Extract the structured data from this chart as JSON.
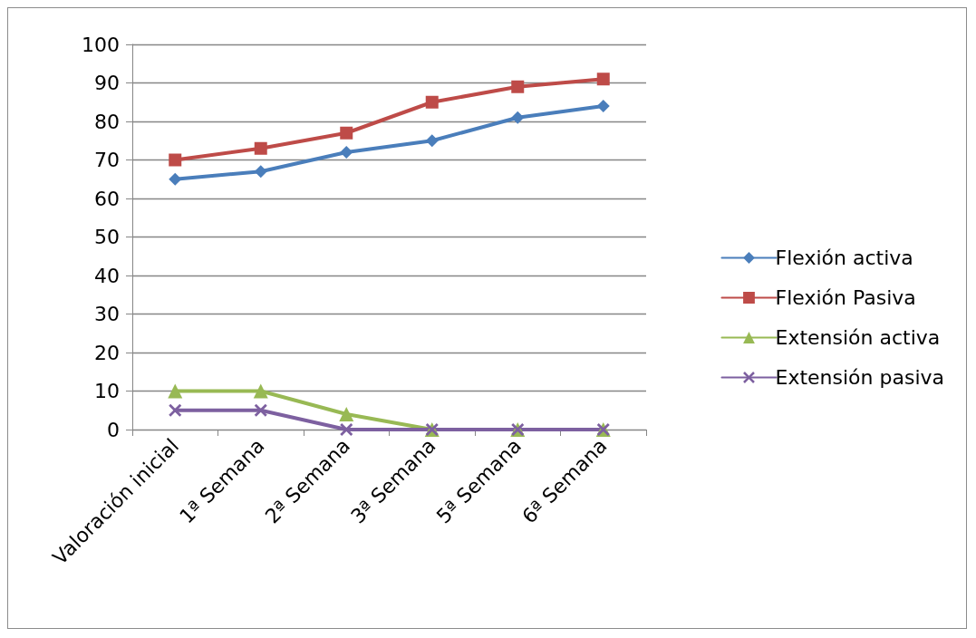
{
  "chart_data": {
    "type": "line",
    "categories": [
      "Valoración inicial",
      "1ª Semana",
      "2ª Semana",
      "3ª Semana",
      "5ª Semana",
      "6ª Semana"
    ],
    "series": [
      {
        "name": "Flexión activa",
        "color": "#4a7ebb",
        "marker": "diamond",
        "values": [
          65,
          67,
          72,
          75,
          81,
          84
        ]
      },
      {
        "name": "Flexión Pasiva",
        "color": "#be4b48",
        "marker": "square",
        "values": [
          70,
          73,
          77,
          85,
          89,
          91
        ]
      },
      {
        "name": "Extensión activa",
        "color": "#98b954",
        "marker": "triangle",
        "values": [
          10,
          10,
          4,
          0,
          0,
          0
        ]
      },
      {
        "name": "Extensión pasiva",
        "color": "#7d60a0",
        "marker": "cross",
        "values": [
          5,
          5,
          0,
          0,
          0,
          0
        ]
      }
    ],
    "ylim": [
      0,
      100
    ],
    "yticks": [
      0,
      10,
      20,
      30,
      40,
      50,
      60,
      70,
      80,
      90,
      100
    ],
    "grid": "y",
    "legend": "right",
    "line_style": "solid"
  }
}
